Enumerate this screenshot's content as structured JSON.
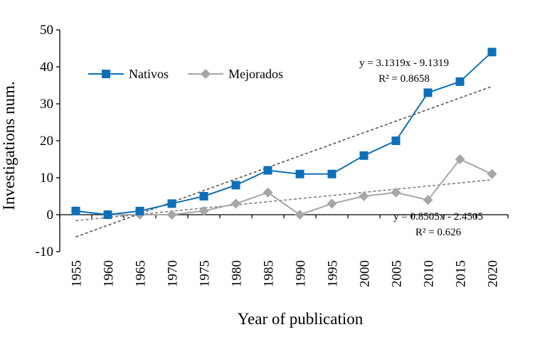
{
  "chart_data": {
    "type": "line",
    "title": "",
    "xlabel": "Year of publication",
    "ylabel": "Investigations num.",
    "categories": [
      "1955",
      "1960",
      "1965",
      "1970",
      "1975",
      "1980",
      "1985",
      "1990",
      "1995",
      "2000",
      "2005",
      "2010",
      "2015",
      "2020"
    ],
    "ylim": [
      -10,
      50
    ],
    "yticks": [
      "-10",
      "0",
      "10",
      "20",
      "30",
      "40",
      "50"
    ],
    "grid": false,
    "legend_position": "top-left",
    "series": [
      {
        "name": "Nativos",
        "color": "#0E6FB8",
        "marker": "square",
        "values": [
          1,
          0,
          1,
          3,
          5,
          8,
          12,
          11,
          11,
          16,
          20,
          33,
          36,
          44
        ],
        "trendline": {
          "slope": 3.1319,
          "intercept": -9.1319,
          "equation": "y = 3.1319x - 9.1319",
          "r2": "R² = 0.8658",
          "color": "#555555"
        }
      },
      {
        "name": "Mejorados",
        "color": "#A6A6A6",
        "marker": "diamond",
        "values": [
          1,
          0,
          0,
          0,
          1,
          3,
          6,
          0,
          3,
          5,
          6,
          4,
          15,
          11
        ],
        "trendline": {
          "slope": 0.8505,
          "intercept": -2.4505,
          "equation": "y = 0.8505x - 2.4505",
          "r2": "R² = 0.626",
          "color": "#7F7F7F"
        }
      }
    ]
  }
}
